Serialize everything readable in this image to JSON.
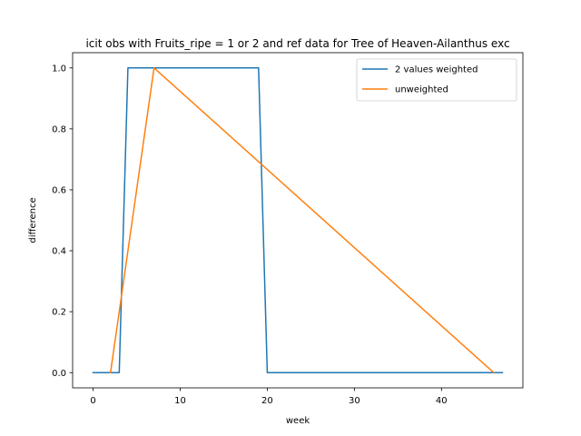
{
  "chart_data": {
    "type": "line",
    "title": "icit obs with Fruits_ripe = 1 or 2 and ref data for Tree of Heaven-Ailanthus exc",
    "xlabel": "week",
    "ylabel": "difference",
    "xlim": [
      -2.35,
      49.35
    ],
    "ylim": [
      -0.05,
      1.05
    ],
    "xticks": [
      0,
      10,
      20,
      30,
      40
    ],
    "yticks": [
      0.0,
      0.2,
      0.4,
      0.6,
      0.8,
      1.0
    ],
    "xtick_labels": [
      "0",
      "10",
      "20",
      "30",
      "40"
    ],
    "ytick_labels": [
      "0.0",
      "0.2",
      "0.4",
      "0.6",
      "0.8",
      "1.0"
    ],
    "grid": false,
    "legend_position": "top-right",
    "series": [
      {
        "name": "2 values weighted",
        "color": "#1f77b4",
        "x": [
          0,
          1,
          2,
          3,
          4,
          5,
          6,
          7,
          8,
          9,
          10,
          11,
          12,
          13,
          14,
          15,
          16,
          17,
          18,
          19,
          20,
          21,
          22,
          23,
          24,
          25,
          26,
          27,
          28,
          29,
          30,
          31,
          32,
          33,
          34,
          35,
          36,
          37,
          38,
          39,
          40,
          41,
          42,
          43,
          44,
          45,
          46,
          47
        ],
        "y": [
          0,
          0,
          0,
          0,
          1,
          1,
          1,
          1,
          1,
          1,
          1,
          1,
          1,
          1,
          1,
          1,
          1,
          1,
          1,
          1,
          0,
          0,
          0,
          0,
          0,
          0,
          0,
          0,
          0,
          0,
          0,
          0,
          0,
          0,
          0,
          0,
          0,
          0,
          0,
          0,
          0,
          0,
          0,
          0,
          0,
          0,
          0,
          0
        ]
      },
      {
        "name": "unweighted",
        "color": "#ff7f0e",
        "x": [
          2,
          7,
          46
        ],
        "y": [
          0,
          1,
          0
        ]
      }
    ]
  }
}
